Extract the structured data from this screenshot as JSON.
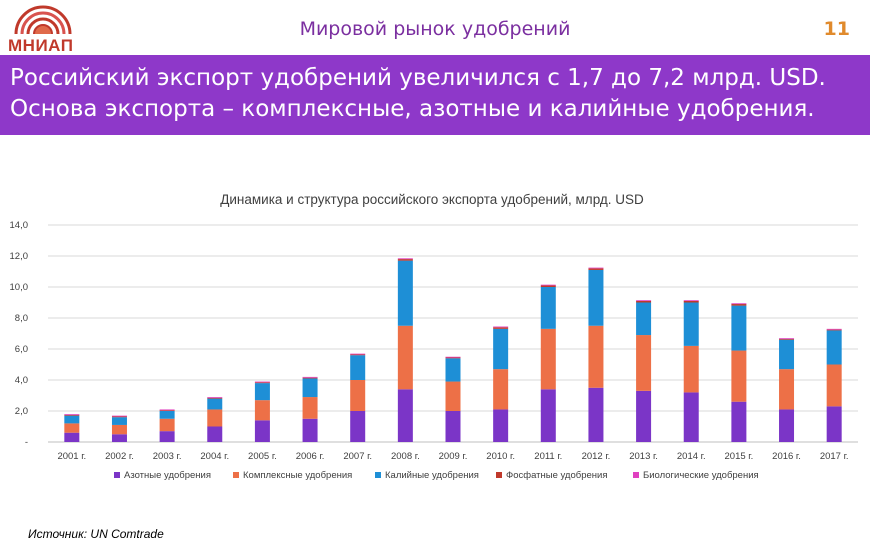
{
  "header": {
    "logo_text": "МНИАП",
    "title": "Мировой рынок удобрений",
    "slide_number": "11"
  },
  "banner": {
    "line1": "Российский экспорт удобрений увеличился с 1,7 до 7,2 млрд. USD.",
    "line2": "Основа экспорта – комплексные, азотные и калийные удобрения."
  },
  "source": "Источник: UN Comtrade",
  "colors": {
    "purple_banner": "#8e38c9",
    "title_purple": "#7b2fa0",
    "slide_number_orange": "#e08a2c",
    "logo_red": "#c0392b"
  },
  "chart_data": {
    "type": "bar",
    "stacked": true,
    "title": "Динамика и структура российского экспорта удобрений, млрд. USD",
    "xlabel": "",
    "ylabel": "",
    "ylim": [
      0,
      14
    ],
    "yticks": [
      0,
      2,
      4,
      6,
      8,
      10,
      12,
      14
    ],
    "ytick_labels": [
      "-",
      "2,0",
      "4,0",
      "6,0",
      "8,0",
      "10,0",
      "12,0",
      "14,0"
    ],
    "grid": true,
    "legend_position": "bottom",
    "categories": [
      "2001 г.",
      "2002 г.",
      "2003 г.",
      "2004 г.",
      "2005 г.",
      "2006 г.",
      "2007 г.",
      "2008 г.",
      "2009 г.",
      "2010 г.",
      "2011 г.",
      "2012 г.",
      "2013 г.",
      "2014 г.",
      "2015 г.",
      "2016 г.",
      "2017 г."
    ],
    "series": [
      {
        "name": "Азотные удобрения",
        "color": "#7b35c7",
        "values": [
          0.6,
          0.5,
          0.7,
          1.0,
          1.4,
          1.5,
          2.0,
          3.4,
          2.0,
          2.1,
          3.4,
          3.5,
          3.3,
          3.2,
          2.6,
          2.1,
          2.3
        ]
      },
      {
        "name": "Комплексные удобрения",
        "color": "#ed7047",
        "values": [
          0.6,
          0.6,
          0.8,
          1.1,
          1.3,
          1.4,
          2.0,
          4.1,
          1.9,
          2.6,
          3.9,
          4.0,
          3.6,
          3.0,
          3.3,
          2.6,
          2.7
        ]
      },
      {
        "name": "Калийные удобрения",
        "color": "#1e8fd6",
        "values": [
          0.5,
          0.5,
          0.5,
          0.7,
          1.1,
          1.2,
          1.6,
          4.2,
          1.5,
          2.6,
          2.7,
          3.6,
          2.1,
          2.8,
          2.9,
          1.9,
          2.2
        ]
      },
      {
        "name": "Фосфатные удобрения",
        "color": "#c0392b",
        "values": [
          0.05,
          0.05,
          0.05,
          0.05,
          0.05,
          0.05,
          0.05,
          0.1,
          0.05,
          0.1,
          0.1,
          0.1,
          0.1,
          0.1,
          0.1,
          0.05,
          0.05
        ]
      },
      {
        "name": "Биологические удобрения",
        "color": "#e040c0",
        "values": [
          0.05,
          0.05,
          0.05,
          0.05,
          0.05,
          0.05,
          0.05,
          0.05,
          0.05,
          0.05,
          0.05,
          0.05,
          0.05,
          0.05,
          0.05,
          0.05,
          0.05
        ]
      }
    ]
  }
}
